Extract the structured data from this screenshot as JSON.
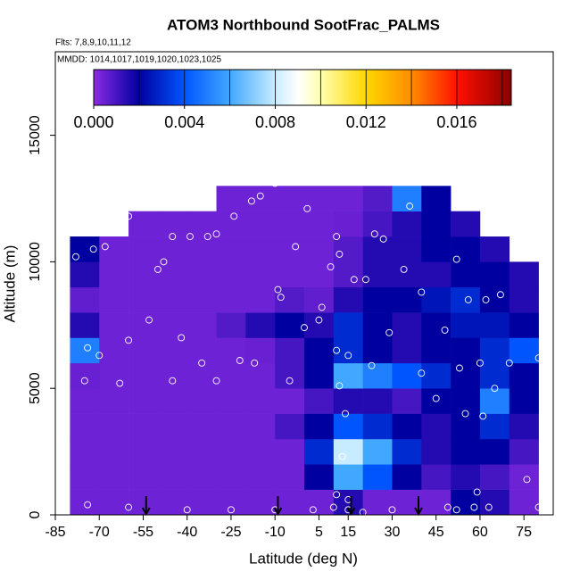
{
  "chart_data": {
    "type": "heatmap",
    "title": "ATOM3 Northbound SootFrac_PALMS",
    "subtitle": "Flts: 7,8,9,10,11,12",
    "annotation": "MMDD: 1014,1017,1019,1020,1023,1025",
    "x_label": "Latitude (deg N)",
    "y_label": "Altitude (m)",
    "xlim": [
      -85,
      85
    ],
    "ylim": [
      0,
      18300
    ],
    "xticks": [
      -85,
      -70,
      -55,
      -40,
      -25,
      -10,
      5,
      15,
      30,
      45,
      60,
      75
    ],
    "yticks": [
      0,
      5000,
      10000,
      15000
    ],
    "x_edges": [
      -80,
      -70,
      -60,
      -50,
      -40,
      -30,
      -20,
      -10,
      0,
      10,
      20,
      30,
      40,
      50,
      60,
      70,
      80
    ],
    "y_edges": [
      0,
      1000,
      2000,
      3000,
      4000,
      5000,
      6000,
      7000,
      8000,
      9000,
      10000,
      11000,
      12000,
      13000
    ],
    "z": [
      [
        0.0004,
        0.0004,
        0.0004,
        0.0004,
        0.0004,
        0.0004,
        0.0004,
        0.0004,
        0.0004,
        0.0015,
        0.0004,
        0.0004,
        0.0004,
        0.002,
        0.0015,
        0.0004
      ],
      [
        0.0004,
        0.0004,
        0.0004,
        0.0004,
        0.0004,
        0.0004,
        0.0004,
        0.0004,
        0.002,
        0.006,
        0.004,
        0.002,
        0.001,
        0.0015,
        0.001,
        0.0004
      ],
      [
        0.0004,
        0.0004,
        0.0004,
        0.0004,
        0.0004,
        0.0004,
        0.0004,
        0.0004,
        0.003,
        0.008,
        0.006,
        0.003,
        0.0015,
        0.002,
        0.002,
        0.001
      ],
      [
        0.0004,
        0.0004,
        0.0004,
        0.0004,
        0.0004,
        0.0004,
        0.0004,
        0.001,
        0.002,
        0.004,
        0.003,
        0.002,
        0.0015,
        0.002,
        0.003,
        0.0015
      ],
      [
        0.0004,
        0.0004,
        0.0004,
        0.0004,
        0.0004,
        0.0004,
        0.0004,
        0.0004,
        0.001,
        0.0015,
        0.0015,
        0.001,
        0.002,
        0.002,
        0.005,
        0.002
      ],
      [
        0.0005,
        0.0004,
        0.0004,
        0.0004,
        0.0004,
        0.0004,
        0.0004,
        0.001,
        0.002,
        0.006,
        0.005,
        0.004,
        0.003,
        0.002,
        0.003,
        0.002
      ],
      [
        0.005,
        0.0004,
        0.0004,
        0.0004,
        0.0004,
        0.0004,
        0.0005,
        0.001,
        0.002,
        0.003,
        0.002,
        0.0015,
        0.002,
        0.002,
        0.003,
        0.004
      ],
      [
        0.0015,
        0.0004,
        0.0004,
        0.0004,
        0.0004,
        0.0008,
        0.0015,
        0.002,
        0.0015,
        0.003,
        0.002,
        0.0015,
        0.002,
        0.0025,
        0.0025,
        0.002
      ],
      [
        0.0006,
        0.0004,
        0.0004,
        0.0004,
        0.0004,
        0.0004,
        0.0004,
        0.0008,
        0.0006,
        0.0015,
        0.002,
        0.002,
        0.0025,
        0.003,
        0.002,
        0.0015
      ],
      [
        0.0015,
        0.0004,
        0.0004,
        0.0004,
        0.0004,
        0.0004,
        0.0004,
        0.0004,
        0.0004,
        0.0008,
        0.0015,
        0.0015,
        0.0015,
        0.002,
        0.002,
        0.0015
      ],
      [
        0.002,
        0.0004,
        0.0004,
        0.0004,
        0.0004,
        0.0004,
        0.0004,
        0.0004,
        0.0004,
        0.0008,
        0.0015,
        0.0015,
        0.002,
        0.002,
        0.0015,
        null
      ],
      [
        null,
        null,
        0.0004,
        0.0004,
        0.0004,
        0.0004,
        0.0004,
        0.0004,
        0.0004,
        0.0005,
        0.001,
        0.0015,
        0.002,
        0.0015,
        null,
        null
      ],
      [
        null,
        null,
        null,
        null,
        null,
        0.0004,
        0.0004,
        0.0004,
        0.0004,
        0.0004,
        0.0008,
        0.005,
        0.002,
        null,
        null,
        null
      ]
    ],
    "zlim": [
      0,
      0.0184
    ],
    "zticks": [
      {
        "value": 0,
        "label": "0.000"
      },
      {
        "value": 0.004,
        "label": "0.004"
      },
      {
        "value": 0.008,
        "label": "0.008"
      },
      {
        "value": 0.012,
        "label": "0.012"
      },
      {
        "value": 0.016,
        "label": "0.016"
      }
    ],
    "color_breaks": [
      0.002,
      0.004,
      0.006,
      0.008,
      0.01,
      0.012,
      0.014,
      0.016,
      0.018
    ],
    "colorscale": [
      {
        "value": 0,
        "color": "#8a2be2"
      },
      {
        "value": 0.002,
        "color": "#0000a0"
      },
      {
        "value": 0.004,
        "color": "#0055ff"
      },
      {
        "value": 0.006,
        "color": "#40a8ff"
      },
      {
        "value": 0.008,
        "color": "#c8ecff"
      },
      {
        "value": 0.009,
        "color": "#ffffff"
      },
      {
        "value": 0.01,
        "color": "#ffffb0"
      },
      {
        "value": 0.012,
        "color": "#ffd700"
      },
      {
        "value": 0.014,
        "color": "#ff8c00"
      },
      {
        "value": 0.016,
        "color": "#ff1000"
      },
      {
        "value": 0.0184,
        "color": "#8b0000"
      }
    ],
    "points": {
      "color": "#ffffff",
      "x": [
        -78,
        -72,
        -68,
        -60,
        -50,
        -48,
        -45,
        -39,
        -33,
        -30,
        -24,
        -18,
        -15,
        -10,
        -9,
        -8,
        -3,
        1,
        6,
        9,
        11,
        12,
        17,
        21,
        24,
        27,
        34,
        36,
        40,
        52,
        56,
        62,
        67,
        -84,
        -74,
        -70,
        -60,
        -53,
        -42,
        -35,
        -30,
        -22,
        -17,
        -5,
        0,
        5,
        11,
        15,
        23,
        29,
        40,
        48,
        53,
        60,
        65,
        70,
        80,
        -75,
        -63,
        -45,
        12,
        14,
        45,
        55,
        61,
        76,
        59,
        58,
        -74,
        -60,
        -40,
        -25,
        -10,
        3,
        10,
        11,
        15,
        15,
        20,
        30,
        49,
        52,
        63,
        80,
        13
      ],
      "y": [
        10200,
        10500,
        10600,
        11800,
        9700,
        10000,
        11000,
        11000,
        11000,
        11100,
        11800,
        12400,
        12600,
        13100,
        8900,
        8600,
        10600,
        12100,
        8200,
        9800,
        11000,
        10300,
        9300,
        9300,
        11100,
        10900,
        9700,
        12200,
        8800,
        10100,
        8500,
        8500,
        8700,
        7800,
        6600,
        6300,
        6900,
        7700,
        7000,
        6000,
        5300,
        6100,
        6000,
        5300,
        7400,
        7700,
        6500,
        6300,
        5900,
        7200,
        5600,
        7300,
        5800,
        6000,
        5000,
        6000,
        6200,
        5300,
        5200,
        5300,
        5100,
        4000,
        4600,
        4000,
        3900,
        1400,
        900,
        300,
        400,
        300,
        200,
        200,
        200,
        200,
        300,
        800,
        200,
        600,
        100,
        200,
        300,
        200,
        300,
        300,
        2300
      ]
    },
    "arrows_x": [
      -54,
      -9,
      16,
      39
    ]
  }
}
